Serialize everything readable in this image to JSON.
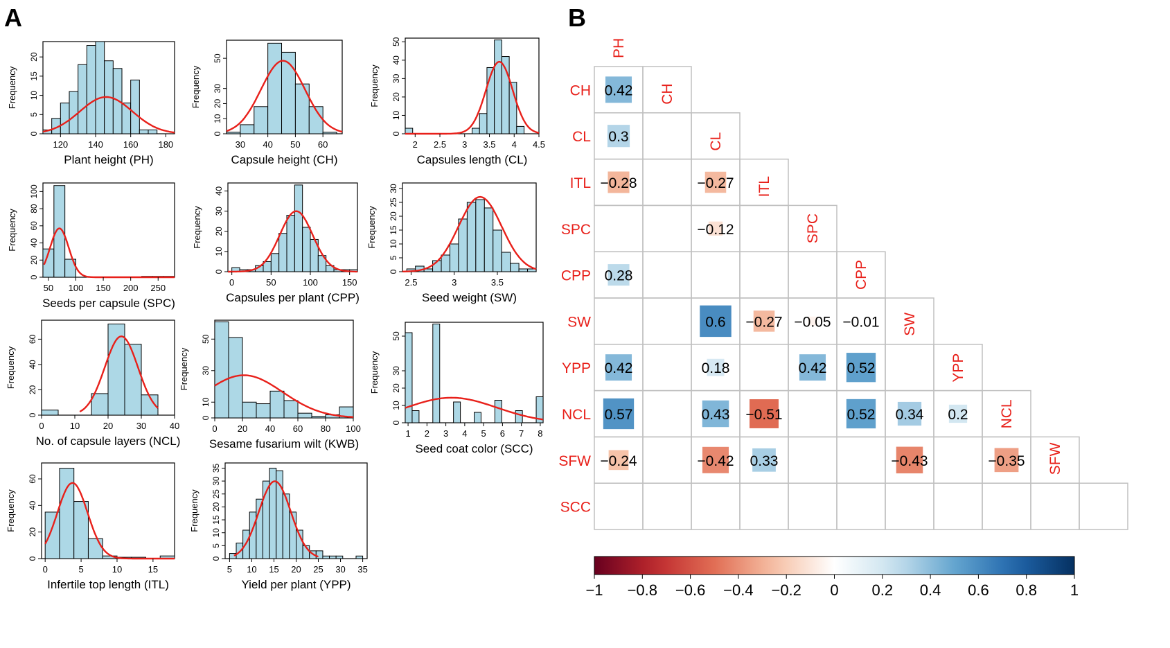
{
  "panels": {
    "a_label": "A",
    "b_label": "B"
  },
  "colors": {
    "bar_fill": "#add8e6",
    "curve": "#e8201a",
    "label_red": "#e8201a",
    "axis": "#000000",
    "grid": "#c0c0c0"
  },
  "chart_data": [
    {
      "type": "bar",
      "id": "ph",
      "xlabel": "Plant height (PH)",
      "ylabel": "Frequency",
      "xlim": [
        110,
        185
      ],
      "ylim": [
        0,
        24
      ],
      "xticks": [
        120,
        140,
        160,
        180
      ],
      "yticks": [
        0,
        5,
        10,
        15,
        20
      ],
      "bin_start": 110,
      "bin_width": 5,
      "values": [
        1,
        4,
        8,
        11,
        18,
        23,
        24,
        19,
        17,
        8,
        14,
        1,
        1
      ],
      "curve": {
        "mean": 146,
        "sd": 15,
        "scale": 360
      }
    },
    {
      "type": "bar",
      "id": "ch",
      "xlabel": "Capsule height (CH)",
      "ylabel": "Frequency",
      "xlim": [
        25,
        67
      ],
      "ylim": [
        0,
        62
      ],
      "xticks": [
        30,
        40,
        50,
        60
      ],
      "yticks": [
        0,
        10,
        20,
        30,
        50
      ],
      "bin_start": 25,
      "bin_width": 5,
      "values": [
        1,
        6,
        18,
        60,
        54,
        33,
        18,
        1
      ],
      "curve": {
        "mean": 45.5,
        "sd": 8,
        "scale": 970
      }
    },
    {
      "type": "bar",
      "id": "cl",
      "xlabel": "Capsules length (CL)",
      "ylabel": "Frequency",
      "xlim": [
        1.8,
        4.5
      ],
      "ylim": [
        0,
        52
      ],
      "xticks": [
        2.0,
        2.5,
        3.0,
        3.5,
        4.0,
        4.5
      ],
      "yticks": [
        0,
        10,
        20,
        30,
        40,
        50
      ],
      "bin_start": 1.8,
      "bin_width": 0.15,
      "values": [
        3,
        0,
        0,
        0,
        0,
        0,
        0,
        0,
        0,
        3,
        11,
        36,
        51,
        42,
        28,
        4
      ],
      "curve": {
        "mean": 3.7,
        "sd": 0.27,
        "scale": 26.5
      }
    },
    {
      "type": "bar",
      "id": "spc",
      "xlabel": "Seeds per capsule (SPC)",
      "ylabel": "Frequency",
      "xlim": [
        40,
        280
      ],
      "ylim": [
        0,
        110
      ],
      "xticks": [
        50,
        100,
        150,
        200,
        250
      ],
      "yticks": [
        0,
        20,
        40,
        60,
        80,
        100
      ],
      "bin_start": 40,
      "bin_width": 20,
      "values": [
        33,
        107,
        21,
        0,
        0,
        0,
        0,
        0,
        0,
        1,
        1,
        1
      ],
      "curve": {
        "mean": 70,
        "sd": 17,
        "scale": 2430,
        "x_from": 42,
        "x_to": 280
      }
    },
    {
      "type": "bar",
      "id": "cpp",
      "xlabel": "Capsules per plant (CPP)",
      "ylabel": "Frequency",
      "xlim": [
        -5,
        160
      ],
      "ylim": [
        0,
        44
      ],
      "xticks": [
        0,
        50,
        100,
        150
      ],
      "yticks": [
        0,
        10,
        20,
        30,
        40
      ],
      "bin_start": 0,
      "bin_width": 10,
      "values": [
        2,
        1,
        1,
        3,
        5,
        9,
        19,
        28,
        43,
        22,
        16,
        8,
        3,
        1,
        1,
        1
      ],
      "curve": {
        "mean": 82,
        "sd": 21,
        "scale": 1580
      }
    },
    {
      "type": "bar",
      "id": "sw",
      "xlabel": "Seed weight (SW)",
      "ylabel": "Frequency",
      "xlim": [
        2.4,
        3.95
      ],
      "ylim": [
        0,
        32
      ],
      "xticks": [
        2.5,
        3.0,
        3.5
      ],
      "yticks": [
        0,
        5,
        10,
        15,
        20,
        25,
        30
      ],
      "bin_start": 2.45,
      "bin_width": 0.1,
      "values": [
        1,
        2,
        1,
        4,
        6,
        10,
        19,
        25,
        26,
        23,
        15,
        7,
        3,
        1,
        1
      ],
      "curve": {
        "mean": 3.3,
        "sd": 0.25,
        "scale": 16.9
      }
    },
    {
      "type": "bar",
      "id": "ncl",
      "xlabel": "No. of capsule layers (NCL)",
      "ylabel": "Frequency",
      "xlim": [
        0,
        40
      ],
      "ylim": [
        0,
        75
      ],
      "xticks": [
        0,
        10,
        20,
        30,
        40
      ],
      "yticks": [
        0,
        20,
        40,
        60
      ],
      "bin_start": 0,
      "bin_width": 5,
      "values": [
        4,
        0,
        0,
        17,
        72,
        56,
        16
      ],
      "curve": {
        "mean": 24,
        "sd": 5,
        "scale": 780,
        "x_from": 11.5,
        "x_to": 35
      }
    },
    {
      "type": "bar",
      "id": "kwb",
      "xlabel": "Sesame fusarium wilt (KWB)",
      "ylabel": "Frequency",
      "xlim": [
        0,
        100
      ],
      "ylim": [
        0,
        62
      ],
      "xticks": [
        0,
        20,
        40,
        60,
        80,
        100
      ],
      "yticks": [
        0,
        10,
        30,
        50
      ],
      "bin_start": 0,
      "bin_width": 10,
      "values": [
        61,
        51,
        10,
        9,
        17,
        11,
        3,
        1,
        2,
        7
      ],
      "curve": {
        "mean": 21,
        "sd": 28,
        "scale": 1900,
        "x_from": 0,
        "x_to": 100
      }
    },
    {
      "type": "bar",
      "id": "scc",
      "xlabel": "Seed coat color (SCC)",
      "ylabel": "Frequency",
      "xlim": [
        0.85,
        8.15
      ],
      "ylim": [
        0,
        58
      ],
      "xticks": [
        1,
        2,
        3,
        4,
        5,
        6,
        7,
        8
      ],
      "yticks": [
        0,
        10,
        20,
        30,
        50
      ],
      "bin_start": 0.85,
      "bin_width": 0.365,
      "values": [
        52,
        7,
        0,
        0,
        57,
        0,
        0,
        12,
        0,
        0,
        6,
        0,
        0,
        13,
        0,
        0,
        7,
        0,
        0,
        15
      ],
      "curve": {
        "mean": 3.3,
        "sd": 2.4,
        "scale": 87
      }
    },
    {
      "type": "bar",
      "id": "itl",
      "xlabel": "Infertile top length (ITL)",
      "ylabel": "Frequency",
      "xlim": [
        -0.5,
        18
      ],
      "ylim": [
        0,
        72
      ],
      "xticks": [
        0,
        5,
        10,
        15
      ],
      "yticks": [
        0,
        20,
        40,
        60
      ],
      "bin_start": 0,
      "bin_width": 2,
      "values": [
        35,
        68,
        43,
        15,
        2,
        1,
        1,
        0,
        2
      ],
      "curve": {
        "mean": 3.8,
        "sd": 2.1,
        "scale": 300,
        "x_from": 0,
        "x_to": 18
      }
    },
    {
      "type": "bar",
      "id": "ypp",
      "xlabel": "Yield per plant (YPP)",
      "ylabel": "Frequency",
      "xlim": [
        4,
        36
      ],
      "ylim": [
        0,
        37
      ],
      "xticks": [
        5,
        10,
        15,
        20,
        25,
        30,
        35
      ],
      "yticks": [
        0,
        5,
        10,
        15,
        20,
        25,
        30,
        35
      ],
      "bin_start": 5,
      "bin_width": 1.5,
      "values": [
        2,
        6,
        11,
        18,
        23,
        30,
        35,
        34,
        25,
        18,
        11,
        5,
        3,
        3,
        1,
        1,
        1,
        0,
        0,
        1
      ],
      "curve": {
        "mean": 15.2,
        "sd": 3.6,
        "scale": 270,
        "x_from": 6,
        "x_to": 25
      }
    },
    {
      "type": "heatmap",
      "id": "corr",
      "variables": [
        "PH",
        "CH",
        "CL",
        "ITL",
        "SPC",
        "CPP",
        "SW",
        "YPP",
        "NCL",
        "SFW",
        "SCC"
      ],
      "cells": [
        {
          "row": "CH",
          "col": "PH",
          "value": 0.42
        },
        {
          "row": "CL",
          "col": "PH",
          "value": 0.3
        },
        {
          "row": "ITL",
          "col": "PH",
          "value": -0.28
        },
        {
          "row": "ITL",
          "col": "CL",
          "value": -0.27
        },
        {
          "row": "SPC",
          "col": "CL",
          "value": -0.12
        },
        {
          "row": "CPP",
          "col": "PH",
          "value": 0.28
        },
        {
          "row": "SW",
          "col": "CL",
          "value": 0.6
        },
        {
          "row": "SW",
          "col": "ITL",
          "value": -0.27
        },
        {
          "row": "SW",
          "col": "SPC",
          "value": -0.05
        },
        {
          "row": "SW",
          "col": "CPP",
          "value": -0.01
        },
        {
          "row": "YPP",
          "col": "PH",
          "value": 0.42
        },
        {
          "row": "YPP",
          "col": "CL",
          "value": 0.18
        },
        {
          "row": "YPP",
          "col": "SPC",
          "value": 0.42
        },
        {
          "row": "YPP",
          "col": "CPP",
          "value": 0.52
        },
        {
          "row": "NCL",
          "col": "PH",
          "value": 0.57
        },
        {
          "row": "NCL",
          "col": "CL",
          "value": 0.43
        },
        {
          "row": "NCL",
          "col": "ITL",
          "value": -0.51
        },
        {
          "row": "NCL",
          "col": "CPP",
          "value": 0.52
        },
        {
          "row": "NCL",
          "col": "SW",
          "value": 0.34
        },
        {
          "row": "NCL",
          "col": "YPP",
          "value": 0.2
        },
        {
          "row": "SFW",
          "col": "PH",
          "value": -0.24
        },
        {
          "row": "SFW",
          "col": "CL",
          "value": -0.42
        },
        {
          "row": "SFW",
          "col": "ITL",
          "value": 0.33
        },
        {
          "row": "SFW",
          "col": "SW",
          "value": -0.43
        },
        {
          "row": "SFW",
          "col": "NCL",
          "value": -0.35
        }
      ],
      "colorbar": {
        "range": [
          -1,
          1
        ],
        "ticks": [
          -1,
          -0.8,
          -0.6,
          -0.4,
          -0.2,
          0,
          0.2,
          0.4,
          0.6,
          0.8,
          1
        ]
      }
    }
  ]
}
